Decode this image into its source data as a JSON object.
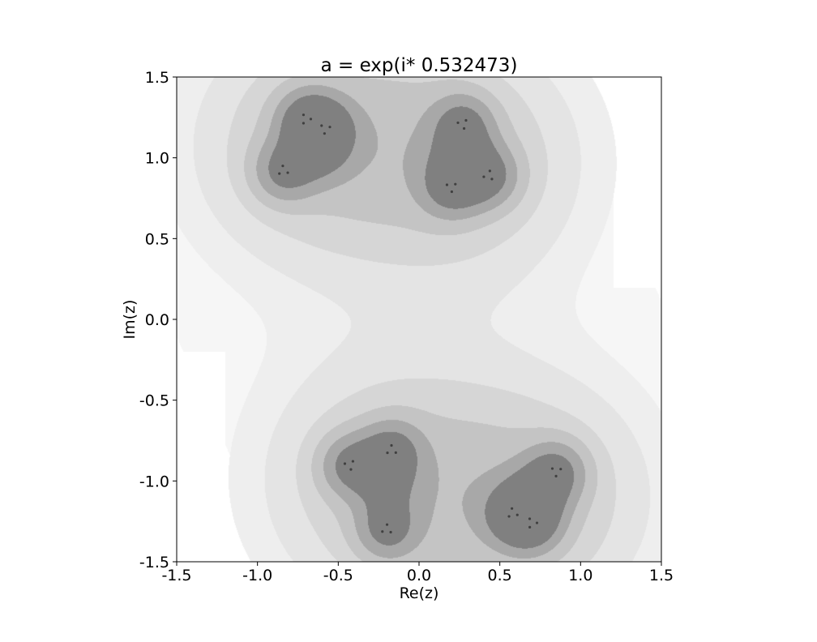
{
  "chart_data": {
    "type": "heatmap",
    "title": "a = exp(i* 0.532473)",
    "xlabel": "Re(z)",
    "ylabel": "Im(z)",
    "xlim": [
      -1.5,
      1.5
    ],
    "ylim": [
      -1.5,
      1.5
    ],
    "xticks": [
      -1.5,
      -1.0,
      -0.5,
      0.0,
      0.5,
      1.0,
      1.5
    ],
    "yticks": [
      -1.5,
      -1.0,
      -0.5,
      0.0,
      0.5,
      1.0,
      1.5
    ],
    "xtick_labels": [
      "-1.5",
      "-1.0",
      "-0.5",
      "0.0",
      "0.5",
      "1.0",
      "1.5"
    ],
    "ytick_labels": [
      "1.5",
      "1.0",
      "0.5",
      "0.0",
      "-0.5",
      "-1.0",
      "-1.5"
    ],
    "grid": false,
    "colormap": "greys",
    "levels": [
      "#f6f6f6",
      "#eeeeee",
      "#e4e4e4",
      "#d6d6d6",
      "#c4c4c4",
      "#a8a8a8",
      "#808080",
      "#404040"
    ],
    "clusters": [
      {
        "center": [
          -0.62,
          1.03
        ],
        "subclusters": [
          [
            -0.58,
            1.18
          ],
          [
            -0.84,
            0.92
          ],
          [
            -0.7,
            1.24
          ]
        ]
      },
      {
        "center": [
          0.25,
          1.0
        ],
        "subclusters": [
          [
            0.2,
            0.82
          ],
          [
            0.27,
            1.21
          ],
          [
            0.43,
            0.89
          ]
        ]
      },
      {
        "center": [
          -0.2,
          -1.02
        ],
        "subclusters": [
          [
            -0.17,
            -0.81
          ],
          [
            -0.43,
            -0.9
          ],
          [
            -0.2,
            -1.3
          ]
        ]
      },
      {
        "center": [
          0.72,
          -1.08
        ],
        "subclusters": [
          [
            0.58,
            -1.2
          ],
          [
            0.85,
            -0.94
          ],
          [
            0.7,
            -1.26
          ]
        ]
      }
    ]
  }
}
